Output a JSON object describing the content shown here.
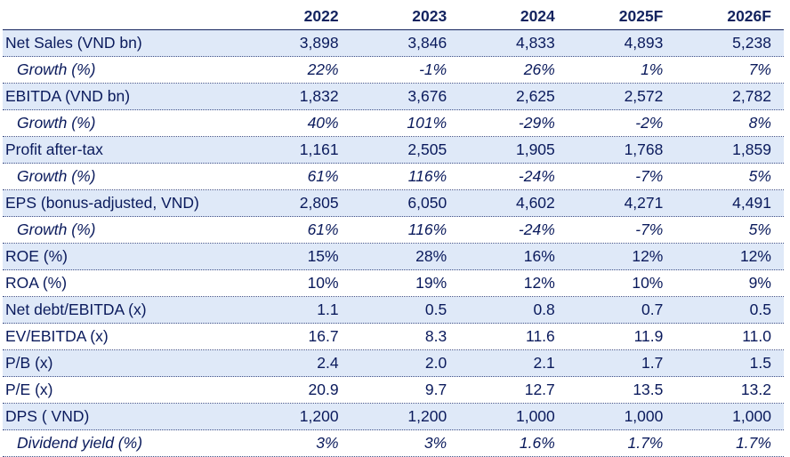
{
  "years": [
    "2022",
    "2023",
    "2024",
    "2025F",
    "2026F"
  ],
  "rows": [
    {
      "label": "Net Sales (VND bn)",
      "values": [
        "3,898",
        "3,846",
        "4,833",
        "4,893",
        "5,238"
      ]
    },
    {
      "label": "Growth (%)",
      "values": [
        "22%",
        "-1%",
        "26%",
        "1%",
        "7%"
      ]
    },
    {
      "label": "EBITDA (VND bn)",
      "values": [
        "1,832",
        "3,676",
        "2,625",
        "2,572",
        "2,782"
      ]
    },
    {
      "label": "Growth (%)",
      "values": [
        "40%",
        "101%",
        "-29%",
        "-2%",
        "8%"
      ]
    },
    {
      "label": "Profit after-tax",
      "values": [
        "1,161",
        "2,505",
        "1,905",
        "1,768",
        "1,859"
      ]
    },
    {
      "label": "Growth (%)",
      "values": [
        "61%",
        "116%",
        "-24%",
        "-7%",
        "5%"
      ]
    },
    {
      "label": "EPS (bonus-adjusted, VND)",
      "values": [
        "2,805",
        "6,050",
        "4,602",
        "4,271",
        "4,491"
      ]
    },
    {
      "label": "Growth (%)",
      "values": [
        "61%",
        "116%",
        "-24%",
        "-7%",
        "5%"
      ]
    },
    {
      "label": "ROE (%)",
      "values": [
        "15%",
        "28%",
        "16%",
        "12%",
        "12%"
      ]
    },
    {
      "label": "ROA (%)",
      "values": [
        "10%",
        "19%",
        "12%",
        "10%",
        "9%"
      ]
    },
    {
      "label": "Net debt/EBITDA (x)",
      "values": [
        "1.1",
        "0.5",
        "0.8",
        "0.7",
        "0.5"
      ]
    },
    {
      "label": "EV/EBITDA (x)",
      "values": [
        "16.7",
        "8.3",
        "11.6",
        "11.9",
        "11.0"
      ]
    },
    {
      "label": "P/B (x)",
      "values": [
        "2.4",
        "2.0",
        "2.1",
        "1.7",
        "1.5"
      ]
    },
    {
      "label": "P/E (x)",
      "values": [
        "20.9",
        "9.7",
        "12.7",
        "13.5",
        "13.2"
      ]
    },
    {
      "label": "DPS ( VND)",
      "values": [
        "1,200",
        "1,200",
        "1,000",
        "1,000",
        "1,000"
      ]
    },
    {
      "label": "Dividend yield (%)",
      "values": [
        "3%",
        "3%",
        "1.6%",
        "1.7%",
        "1.7%"
      ]
    }
  ]
}
